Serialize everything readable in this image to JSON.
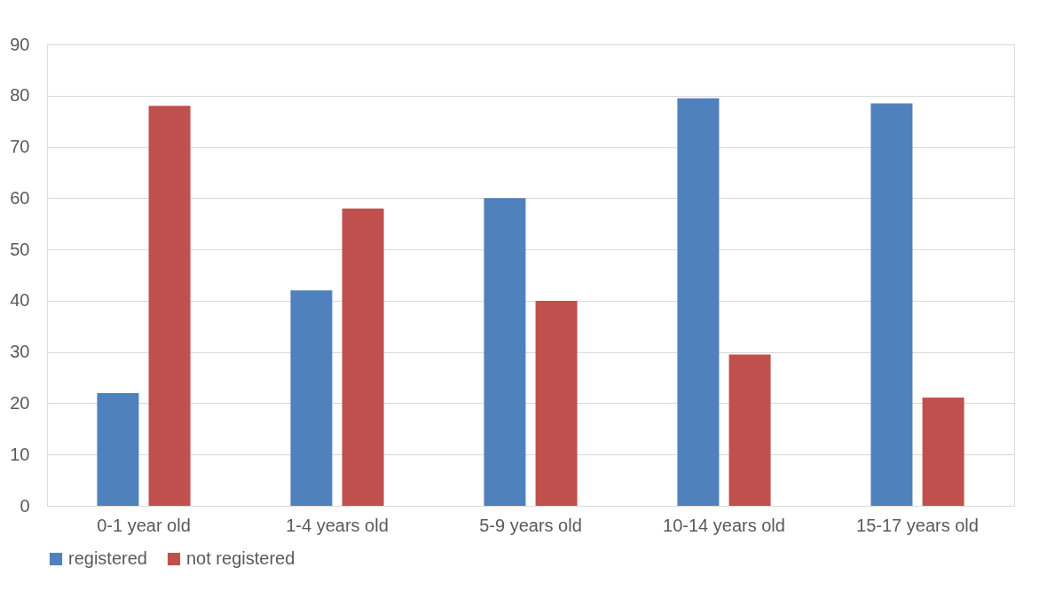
{
  "chart_data": {
    "type": "bar",
    "categories": [
      "0-1 year old",
      "1-4 years old",
      "5-9 years old",
      "10-14 years old",
      "15-17 years old"
    ],
    "series": [
      {
        "name": "registered",
        "color": "#4f81bd",
        "values": [
          22,
          42,
          60,
          79.5,
          78.5
        ]
      },
      {
        "name": "not registered",
        "color": "#c0504d",
        "values": [
          78,
          58,
          40,
          29.5,
          21.1
        ]
      }
    ],
    "ylim": [
      0,
      90
    ],
    "yticks": [
      0,
      10,
      20,
      30,
      40,
      50,
      60,
      70,
      80,
      90
    ],
    "grid": "y",
    "legend": "bottom"
  }
}
